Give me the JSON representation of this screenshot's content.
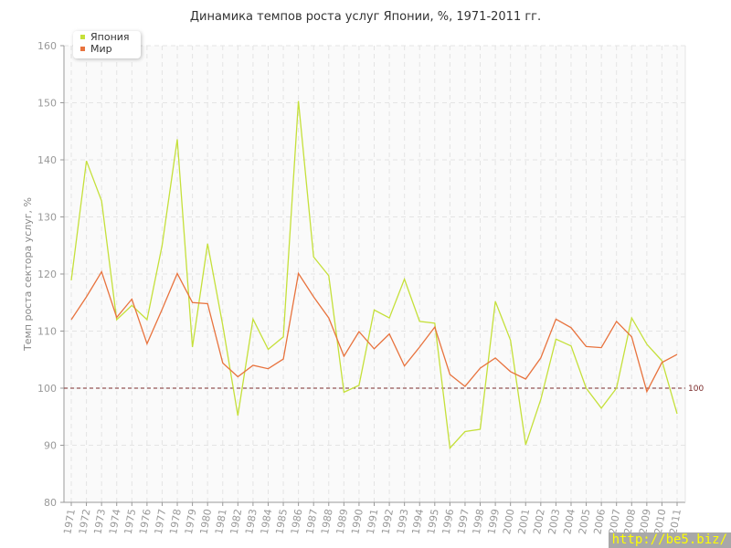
{
  "chart_data": {
    "type": "line",
    "title": "Динамика темпов роста услуг Японии, %, 1971-2011 гг.",
    "ylabel": "Темп роста сектора услуг, %",
    "xlabel": "",
    "ylim": [
      80,
      160
    ],
    "yticks": [
      80,
      90,
      100,
      110,
      120,
      130,
      140,
      150,
      160
    ],
    "grid": true,
    "legend_position": "top-left",
    "reference_line": {
      "value": 100,
      "label": "100",
      "color": "#7a2a2a"
    },
    "x": [
      "1971",
      "1972",
      "1973",
      "1974",
      "1975",
      "1976",
      "1977",
      "1978",
      "1979",
      "1980",
      "1981",
      "1982",
      "1983",
      "1984",
      "1985",
      "1986",
      "1987",
      "1988",
      "1989",
      "1990",
      "1991",
      "1992",
      "1993",
      "1994",
      "1995",
      "1996",
      "1997",
      "1998",
      "1999",
      "2000",
      "2001",
      "2002",
      "2003",
      "2004",
      "2005",
      "2006",
      "2007",
      "2008",
      "2009",
      "2010",
      "2011"
    ],
    "series": [
      {
        "name": "Япония",
        "color": "#c5e03a",
        "values": [
          118.9,
          139.8,
          132.8,
          112.0,
          114.5,
          112.0,
          125.0,
          143.6,
          107.2,
          125.3,
          111.0,
          95.2,
          112.1,
          106.8,
          109.0,
          150.3,
          123.0,
          119.7,
          99.3,
          100.5,
          113.7,
          112.3,
          119.1,
          111.7,
          111.4,
          89.5,
          92.4,
          92.8,
          115.2,
          108.4,
          90.1,
          98.0,
          108.6,
          107.4,
          100.0,
          96.5,
          100.0,
          112.3,
          107.7,
          104.8,
          95.5
        ]
      },
      {
        "name": "Мир",
        "color": "#e8733e",
        "values": [
          112.0,
          116.0,
          120.4,
          112.4,
          115.6,
          107.8,
          113.8,
          120.1,
          115.0,
          114.8,
          104.4,
          102.0,
          104.0,
          103.4,
          105.1,
          120.1,
          116.0,
          112.3,
          105.6,
          109.9,
          106.9,
          109.5,
          103.9,
          107.2,
          110.7,
          102.4,
          100.3,
          103.5,
          105.3,
          102.9,
          101.6,
          105.3,
          112.1,
          110.6,
          107.3,
          107.1,
          111.7,
          109.0,
          99.4,
          104.5,
          105.9
        ]
      }
    ]
  },
  "watermark": "http://be5.biz/"
}
